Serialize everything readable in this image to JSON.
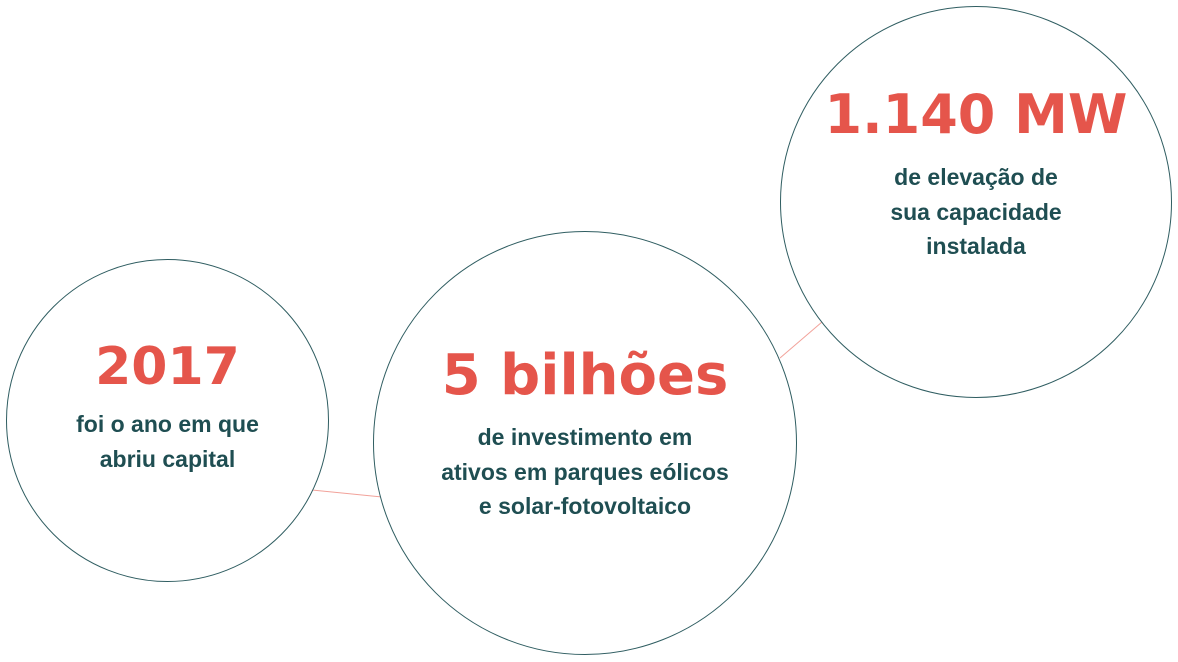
{
  "colors": {
    "accent": "#e5554b",
    "text": "#1f4e52",
    "circle_border": "#2f5d61",
    "connector": "#f2a29a"
  },
  "stats": [
    {
      "headline": "2017",
      "caption_lines": [
        "foi o ano em que",
        "abriu capital"
      ]
    },
    {
      "headline": "5 bilhões",
      "caption_lines": [
        "de investimento em",
        "ativos em parques eólicos",
        "e solar-fotovoltaico"
      ]
    },
    {
      "headline": "1.140 MW",
      "caption_lines": [
        "de elevação de",
        "sua capacidade",
        "instalada"
      ]
    }
  ]
}
